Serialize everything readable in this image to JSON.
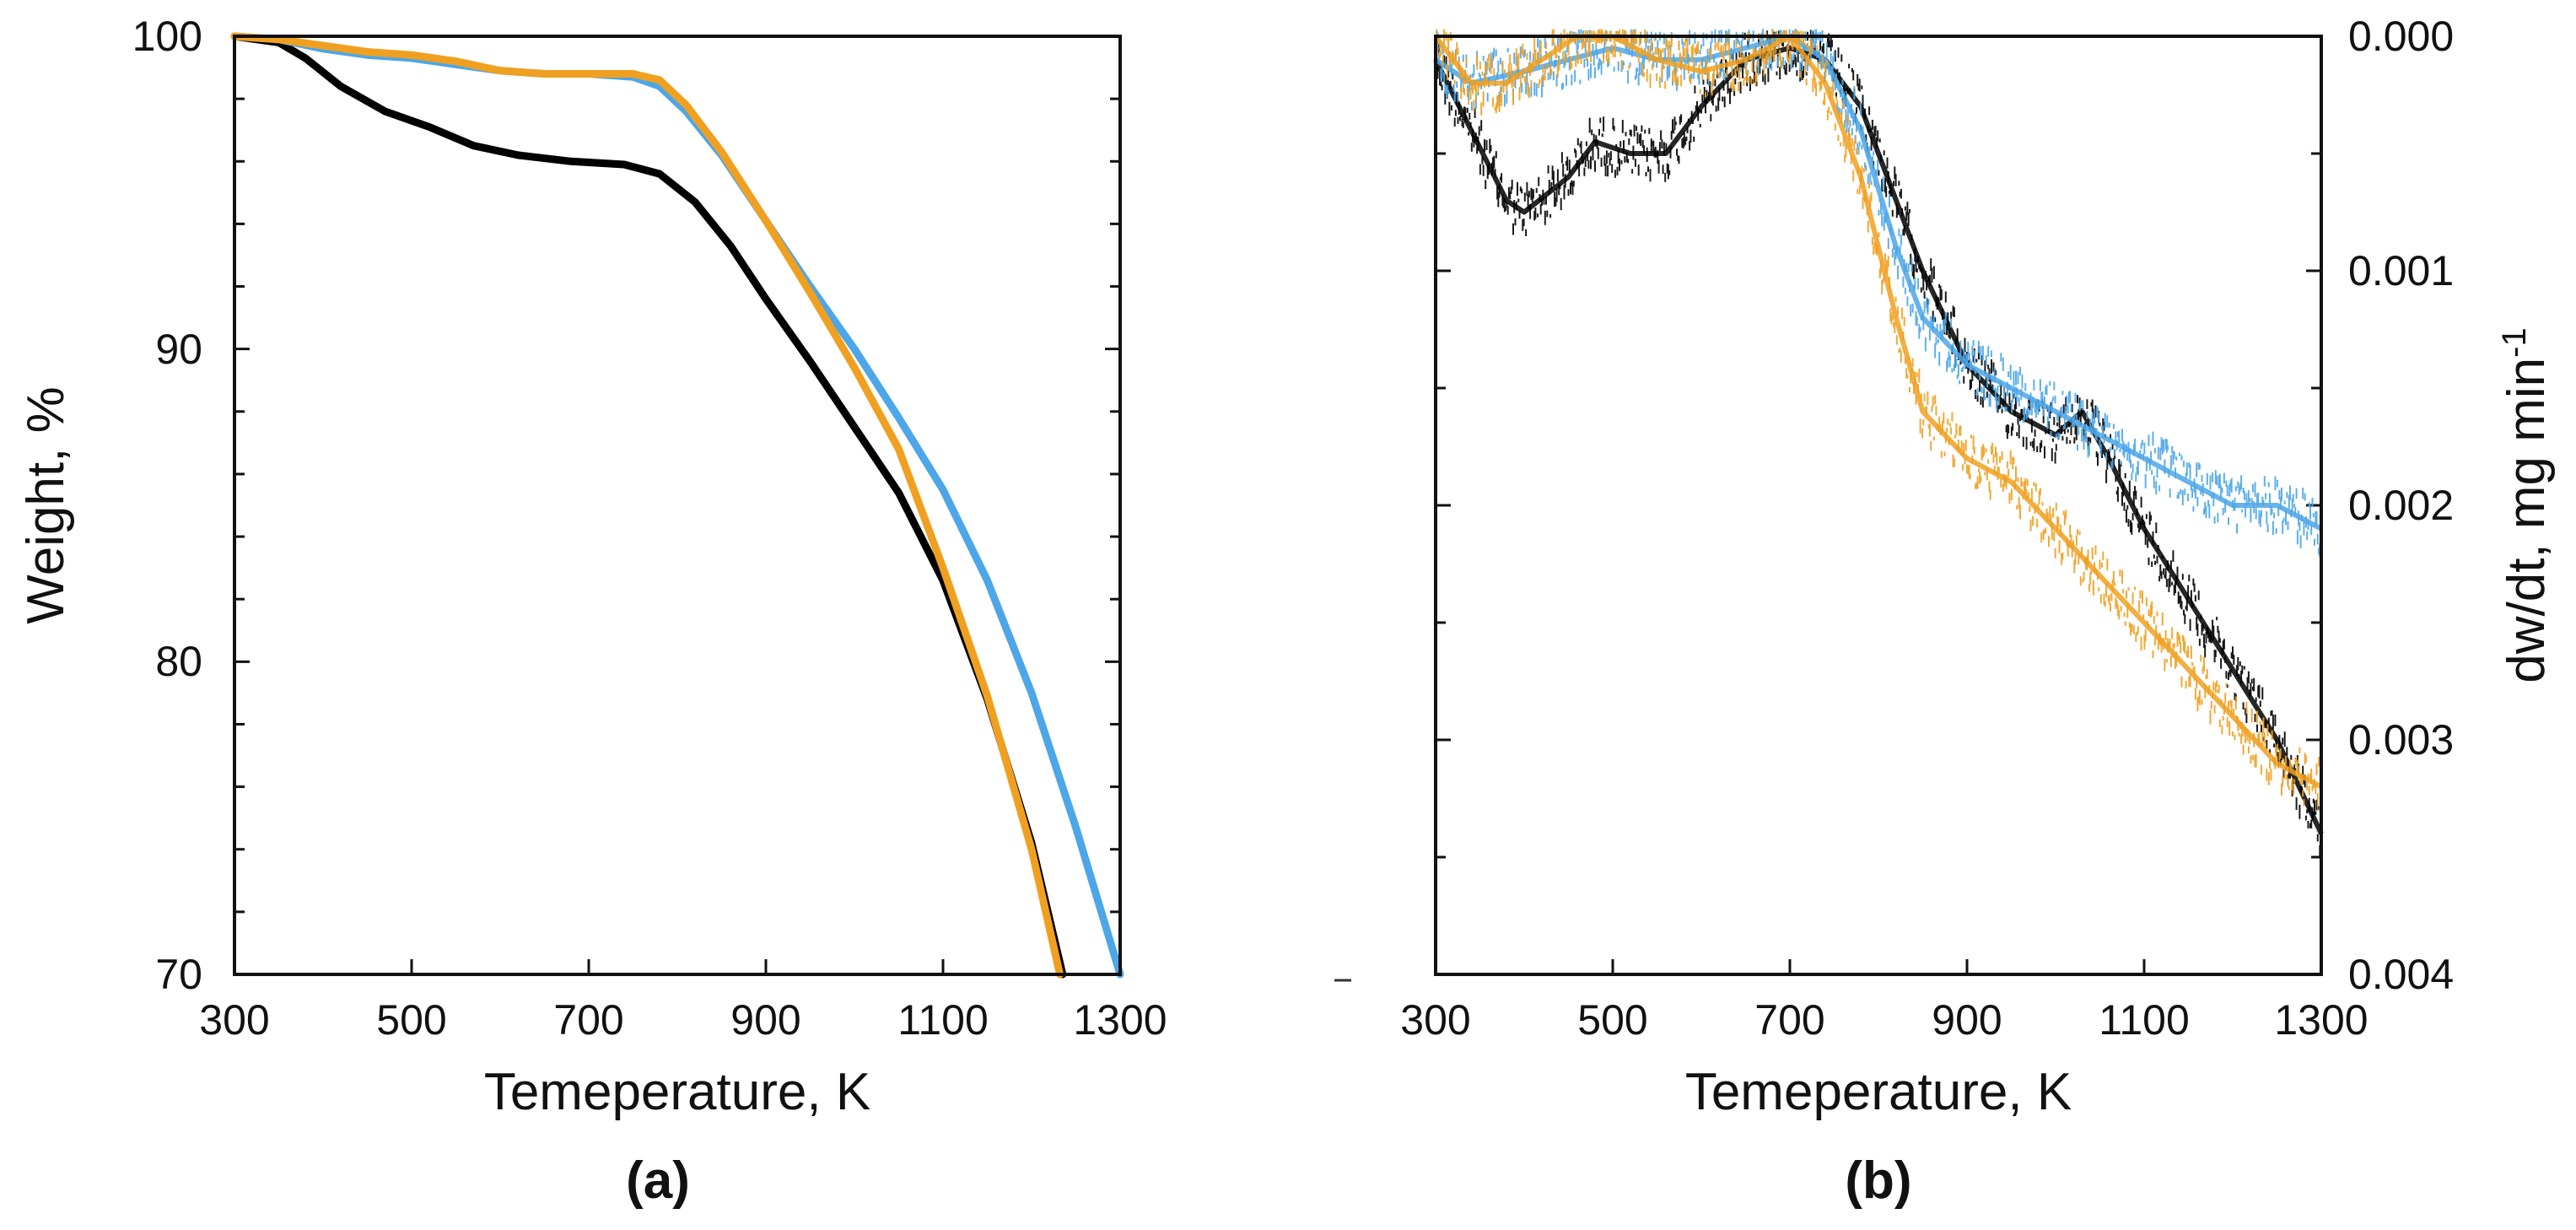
{
  "chart_data": [
    {
      "type": "line",
      "panel_label": "(a)",
      "xlabel": "Temeperature, K",
      "ylabel": "Weight, %",
      "xlim": [
        300,
        1300
      ],
      "ylim": [
        70,
        100
      ],
      "x_ticks": [
        "300",
        "500",
        "700",
        "900",
        "1100",
        "1300"
      ],
      "y_ticks": [
        "70",
        "80",
        "90",
        "100"
      ],
      "series": [
        {
          "name": "black",
          "color": "#000000",
          "points": [
            [
              300,
              100
            ],
            [
              350,
              99.8
            ],
            [
              380,
              99.3
            ],
            [
              420,
              98.4
            ],
            [
              470,
              97.6
            ],
            [
              520,
              97.1
            ],
            [
              570,
              96.5
            ],
            [
              620,
              96.2
            ],
            [
              680,
              96.0
            ],
            [
              740,
              95.9
            ],
            [
              780,
              95.6
            ],
            [
              820,
              94.7
            ],
            [
              860,
              93.3
            ],
            [
              900,
              91.6
            ],
            [
              950,
              89.6
            ],
            [
              1000,
              87.5
            ],
            [
              1050,
              85.4
            ],
            [
              1100,
              82.6
            ],
            [
              1150,
              78.8
            ],
            [
              1200,
              74.2
            ],
            [
              1235,
              70
            ]
          ]
        },
        {
          "name": "blue",
          "color": "#4da6e8",
          "points": [
            [
              300,
              100
            ],
            [
              350,
              99.9
            ],
            [
              400,
              99.6
            ],
            [
              450,
              99.4
            ],
            [
              500,
              99.3
            ],
            [
              550,
              99.1
            ],
            [
              600,
              98.9
            ],
            [
              650,
              98.8
            ],
            [
              700,
              98.8
            ],
            [
              750,
              98.7
            ],
            [
              780,
              98.4
            ],
            [
              810,
              97.6
            ],
            [
              850,
              96.2
            ],
            [
              900,
              94.1
            ],
            [
              950,
              92.0
            ],
            [
              1000,
              90.0
            ],
            [
              1050,
              87.8
            ],
            [
              1100,
              85.5
            ],
            [
              1150,
              82.6
            ],
            [
              1200,
              79.0
            ],
            [
              1250,
              74.7
            ],
            [
              1300,
              70
            ]
          ]
        },
        {
          "name": "orange",
          "color": "#f0a020",
          "points": [
            [
              300,
              100
            ],
            [
              350,
              99.9
            ],
            [
              400,
              99.7
            ],
            [
              450,
              99.5
            ],
            [
              500,
              99.4
            ],
            [
              550,
              99.2
            ],
            [
              600,
              98.9
            ],
            [
              650,
              98.8
            ],
            [
              700,
              98.8
            ],
            [
              750,
              98.8
            ],
            [
              780,
              98.6
            ],
            [
              810,
              97.8
            ],
            [
              850,
              96.3
            ],
            [
              900,
              94.1
            ],
            [
              950,
              91.8
            ],
            [
              1000,
              89.4
            ],
            [
              1050,
              86.8
            ],
            [
              1100,
              83.0
            ],
            [
              1150,
              78.9
            ],
            [
              1200,
              74.0
            ],
            [
              1232,
              70
            ]
          ]
        }
      ]
    },
    {
      "type": "scatter",
      "panel_label": "(b)",
      "xlabel": "Temeperature, K",
      "ylabel": "dw/dt, mg min",
      "ylabel_superscript": "-1",
      "xlim": [
        300,
        1300
      ],
      "ylim": [
        0,
        0.004
      ],
      "y_inverted": true,
      "x_ticks": [
        "300",
        "500",
        "700",
        "900",
        "1100",
        "1300"
      ],
      "y_ticks": [
        "0.000",
        "0.001",
        "0.002",
        "0.003",
        "0.004"
      ],
      "series": [
        {
          "name": "black",
          "color": "#000000",
          "points": [
            [
              300,
              0.0001
            ],
            [
              340,
              0.0004
            ],
            [
              380,
              0.0007
            ],
            [
              400,
              0.00075
            ],
            [
              450,
              0.0006
            ],
            [
              480,
              0.00045
            ],
            [
              520,
              0.0005
            ],
            [
              560,
              0.0005
            ],
            [
              600,
              0.0003
            ],
            [
              650,
              0.0001
            ],
            [
              700,
              5e-05
            ],
            [
              740,
              0.0001
            ],
            [
              780,
              0.0003
            ],
            [
              820,
              0.0007
            ],
            [
              850,
              0.001
            ],
            [
              900,
              0.0014
            ],
            [
              950,
              0.0016
            ],
            [
              1000,
              0.0017
            ],
            [
              1030,
              0.0016
            ],
            [
              1060,
              0.0018
            ],
            [
              1100,
              0.0021
            ],
            [
              1150,
              0.0024
            ],
            [
              1200,
              0.0027
            ],
            [
              1250,
              0.003
            ],
            [
              1300,
              0.0034
            ]
          ]
        },
        {
          "name": "blue",
          "color": "#4da6e8",
          "points": [
            [
              300,
              0.0001
            ],
            [
              340,
              0.0002
            ],
            [
              400,
              0.00015
            ],
            [
              450,
              0.0001
            ],
            [
              500,
              5e-05
            ],
            [
              550,
              0.0001
            ],
            [
              600,
              0.0001
            ],
            [
              650,
              5e-05
            ],
            [
              700,
              0.0
            ],
            [
              740,
              0.0001
            ],
            [
              780,
              0.0004
            ],
            [
              820,
              0.0009
            ],
            [
              850,
              0.0012
            ],
            [
              900,
              0.0014
            ],
            [
              950,
              0.0015
            ],
            [
              1000,
              0.0016
            ],
            [
              1050,
              0.0017
            ],
            [
              1100,
              0.0018
            ],
            [
              1150,
              0.0019
            ],
            [
              1200,
              0.002
            ],
            [
              1250,
              0.002
            ],
            [
              1300,
              0.0021
            ]
          ]
        },
        {
          "name": "orange",
          "color": "#f0a020",
          "points": [
            [
              300,
              0.0
            ],
            [
              340,
              0.0002
            ],
            [
              380,
              0.0002
            ],
            [
              420,
              0.0001
            ],
            [
              460,
              0.0
            ],
            [
              500,
              0.0
            ],
            [
              550,
              0.0001
            ],
            [
              600,
              0.00015
            ],
            [
              650,
              0.0001
            ],
            [
              700,
              0.0
            ],
            [
              740,
              0.0002
            ],
            [
              780,
              0.0006
            ],
            [
              820,
              0.0012
            ],
            [
              850,
              0.0016
            ],
            [
              900,
              0.0018
            ],
            [
              950,
              0.0019
            ],
            [
              1000,
              0.0021
            ],
            [
              1050,
              0.0023
            ],
            [
              1100,
              0.0025
            ],
            [
              1150,
              0.0027
            ],
            [
              1200,
              0.0029
            ],
            [
              1250,
              0.0031
            ],
            [
              1300,
              0.0032
            ]
          ]
        }
      ]
    }
  ]
}
